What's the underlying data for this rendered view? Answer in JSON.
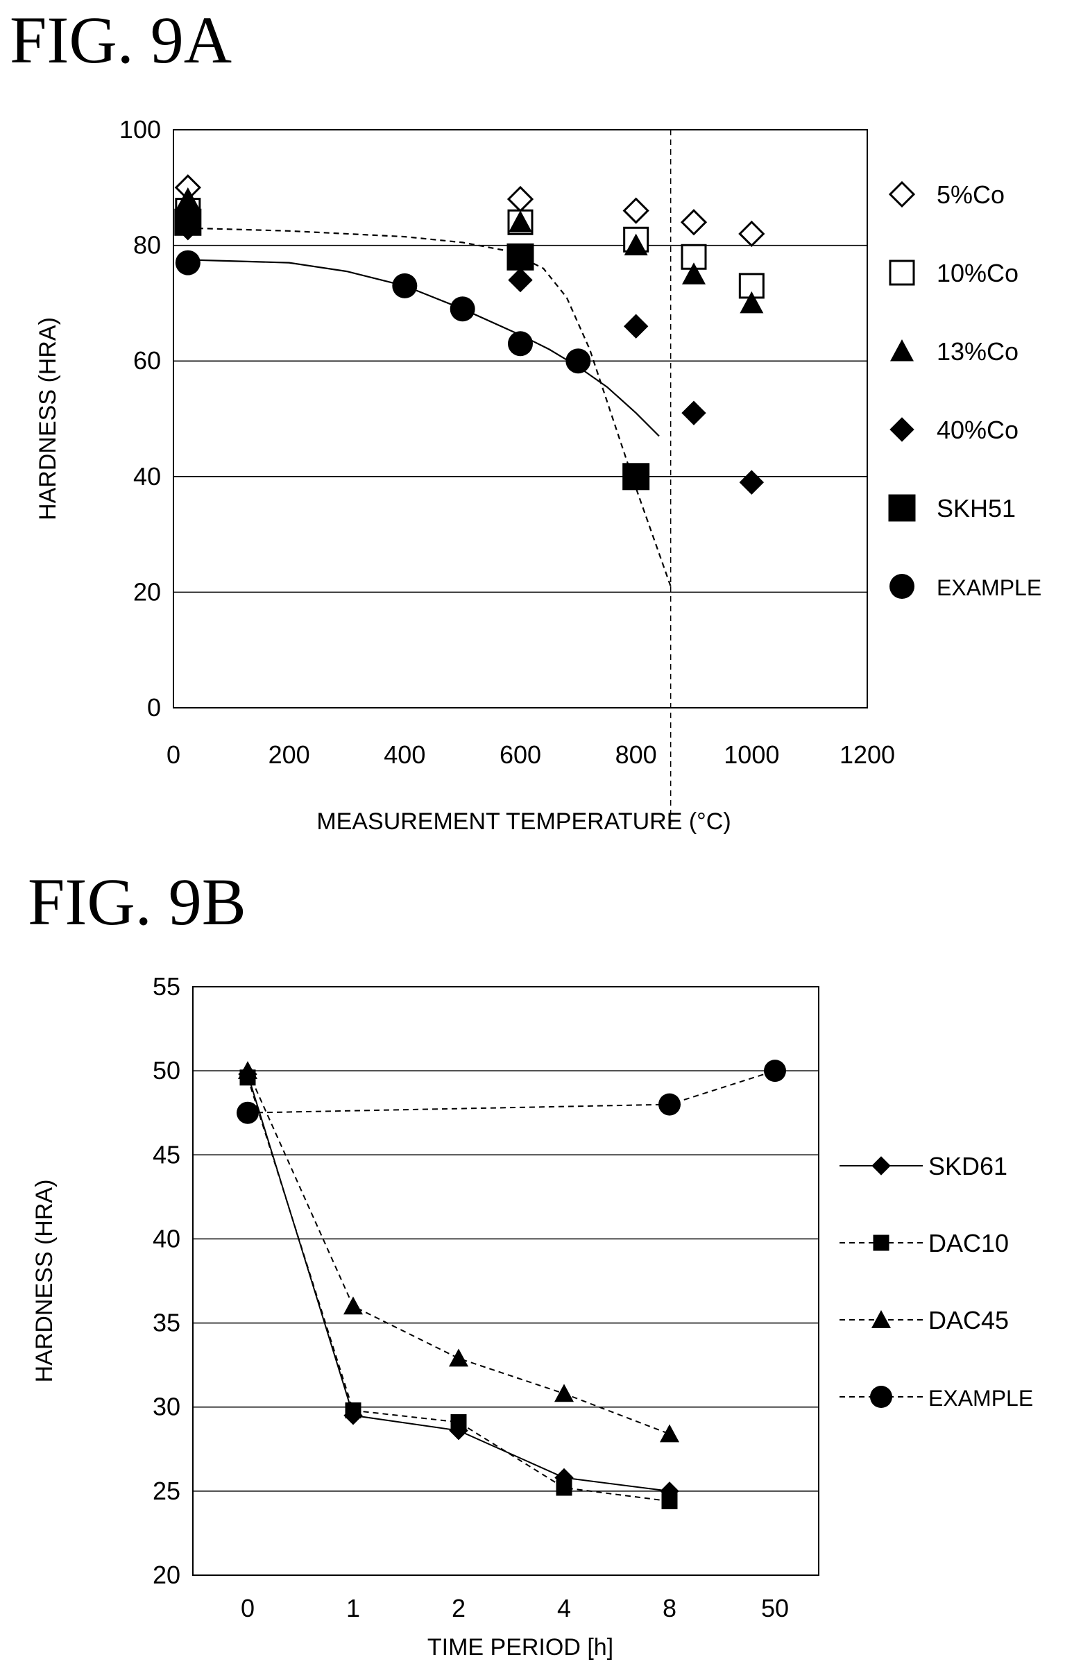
{
  "figures": {
    "a_title": "FIG. 9A",
    "b_title": "FIG. 9B"
  },
  "chart_data": [
    {
      "type": "scatter",
      "title": "FIG. 9A",
      "xlabel": "MEASUREMENT TEMPERATURE (°C)",
      "ylabel": "HARDNESS (HRA)",
      "xlim": [
        0,
        1200
      ],
      "ylim": [
        0,
        100
      ],
      "x_ticks": [
        "0",
        "200",
        "400",
        "600",
        "800",
        "1000",
        "1200"
      ],
      "y_ticks": [
        "0",
        "20",
        "40",
        "60",
        "80",
        "100"
      ],
      "grid": "horizontal",
      "legend_position": "right",
      "reference_line_x": 860,
      "series": [
        {
          "name": "5%Co",
          "marker": "diamond-open",
          "x": [
            25,
            600,
            800,
            900,
            1000
          ],
          "y": [
            90,
            88,
            86,
            84,
            82
          ]
        },
        {
          "name": "10%Co",
          "marker": "square-open",
          "x": [
            25,
            600,
            800,
            900,
            1000
          ],
          "y": [
            86,
            84,
            81,
            78,
            73
          ]
        },
        {
          "name": "13%Co",
          "marker": "triangle",
          "x": [
            25,
            600,
            800,
            900,
            1000
          ],
          "y": [
            88,
            84,
            80,
            75,
            70
          ]
        },
        {
          "name": "40%Co",
          "marker": "diamond",
          "x": [
            25,
            600,
            800,
            900,
            1000
          ],
          "y": [
            83,
            74,
            66,
            51,
            39
          ]
        },
        {
          "name": "SKH51",
          "marker": "square",
          "x": [
            25,
            600,
            800
          ],
          "y": [
            84,
            78,
            40
          ]
        },
        {
          "name": "EXAMPLE",
          "marker": "circle",
          "x": [
            25,
            400,
            500,
            600,
            700
          ],
          "y": [
            77,
            73,
            69,
            63,
            60
          ]
        }
      ],
      "trend_curves": [
        {
          "style": "dashed",
          "x": [
            25,
            200,
            400,
            500,
            580,
            640,
            680,
            720,
            760,
            800,
            860
          ],
          "y": [
            83,
            82.5,
            81.5,
            80.5,
            79,
            76,
            71,
            62,
            50,
            38,
            21
          ]
        },
        {
          "style": "solid",
          "x": [
            25,
            200,
            300,
            400,
            500,
            600,
            650,
            700,
            750,
            800,
            840
          ],
          "y": [
            77.5,
            77,
            75.5,
            73,
            69,
            64.5,
            62,
            59,
            55.5,
            51,
            47
          ]
        }
      ]
    },
    {
      "type": "line",
      "title": "FIG. 9B",
      "xlabel": "TIME PERIOD [h]",
      "ylabel": "HARDNESS (HRA)",
      "categories": [
        "0",
        "1",
        "2",
        "4",
        "8",
        "50"
      ],
      "ylim": [
        20,
        55
      ],
      "y_ticks": [
        "20",
        "25",
        "30",
        "35",
        "40",
        "45",
        "50",
        "55"
      ],
      "grid": "horizontal",
      "legend_position": "right",
      "series": [
        {
          "name": "SKD61",
          "marker": "diamond",
          "line": "solid",
          "values": [
            49.8,
            29.5,
            28.6,
            25.8,
            25.0,
            null
          ]
        },
        {
          "name": "DAC10",
          "marker": "square",
          "line": "dashed",
          "values": [
            49.6,
            29.8,
            29.1,
            25.2,
            24.4,
            null
          ]
        },
        {
          "name": "DAC45",
          "marker": "triangle",
          "line": "dashed",
          "values": [
            50.0,
            36.0,
            32.9,
            30.8,
            28.4,
            null
          ]
        },
        {
          "name": "EXAMPLE",
          "marker": "circle",
          "line": "dashed",
          "values": [
            47.5,
            null,
            null,
            null,
            48.0,
            50.0
          ]
        }
      ]
    }
  ]
}
